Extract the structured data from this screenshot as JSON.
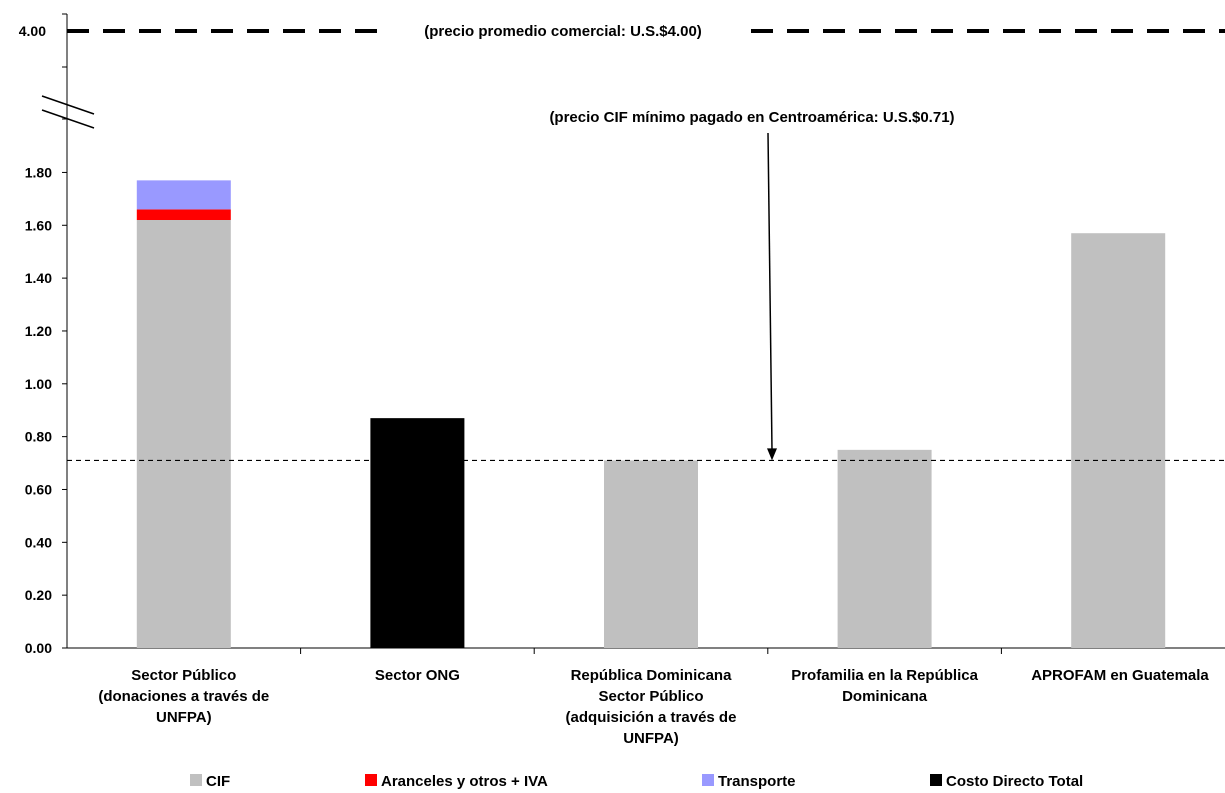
{
  "chart_data": {
    "type": "bar",
    "stacked": true,
    "categories": [
      [
        "Sector Público",
        "(donaciones a través de",
        "UNFPA)"
      ],
      [
        "Sector ONG"
      ],
      [
        "República Dominicana",
        "Sector Público",
        "(adquisición a través de",
        "UNFPA)"
      ],
      [
        "Profamilia en la República",
        "Dominicana"
      ],
      [
        "APROFAM en Guatemala"
      ]
    ],
    "series": [
      {
        "name": "CIF",
        "color": "#c0c0c0",
        "values": [
          1.62,
          null,
          0.71,
          0.75,
          1.57
        ]
      },
      {
        "name": "Aranceles y otros + IVA",
        "color": "#ff0000",
        "values": [
          0.04,
          null,
          null,
          null,
          null
        ]
      },
      {
        "name": "Transporte",
        "color": "#9999ff",
        "values": [
          0.11,
          null,
          null,
          null,
          null
        ]
      },
      {
        "name": "Costo Directo Total",
        "color": "#000000",
        "values": [
          null,
          0.87,
          null,
          null,
          null
        ]
      }
    ],
    "y_ticks": [
      "0.00",
      "0.20",
      "0.40",
      "0.60",
      "0.80",
      "1.00",
      "1.20",
      "1.40",
      "1.60",
      "1.80"
    ],
    "y_break_tick": "4.00",
    "ylim": [
      0,
      1.8
    ],
    "axis_break": true,
    "reference_lines": [
      {
        "value": 4.0,
        "style": "dashed-thick",
        "label": "(precio promedio comercial: U.S.$4.00)"
      },
      {
        "value": 0.71,
        "style": "dashed-thin",
        "label": "(precio CIF mínimo pagado en Centroamérica: U.S.$0.71)"
      }
    ],
    "legend_position": "bottom",
    "grid": false
  }
}
